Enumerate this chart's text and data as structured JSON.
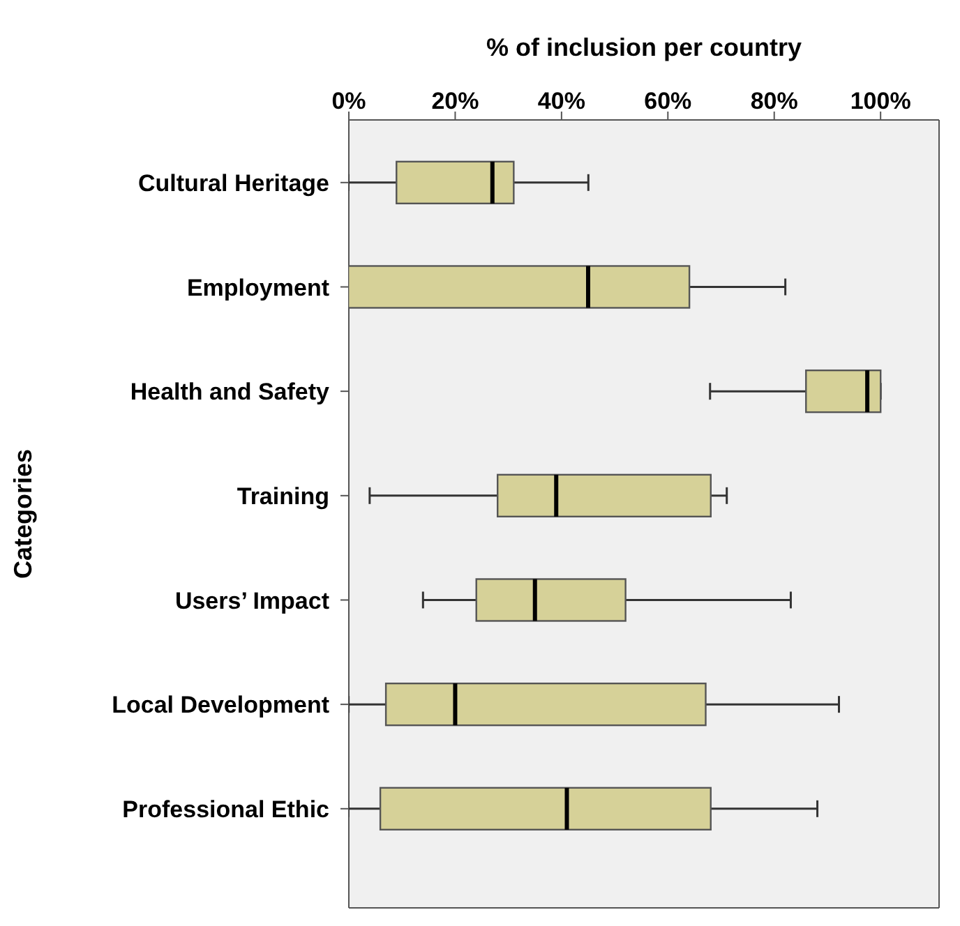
{
  "chart_data": {
    "type": "box",
    "xlabel": "% of inclusion per country",
    "ylabel": "Categories",
    "orientation": "horizontal",
    "categories": [
      "Cultural Heritage",
      "Employment",
      "Health and Safety",
      "Training",
      "Users’ Impact",
      "Local Development",
      "Professional Ethic"
    ],
    "color": "#d6d198",
    "xlim": [
      0,
      111
    ],
    "xticks": [
      {
        "value": 0,
        "label": "0%"
      },
      {
        "value": 20,
        "label": "20%"
      },
      {
        "value": 40,
        "label": "40%"
      },
      {
        "value": 60,
        "label": "60%"
      },
      {
        "value": 80,
        "label": "80%"
      },
      {
        "value": 100,
        "label": "100%"
      }
    ],
    "boxes": [
      {
        "low": 0,
        "q1": 9,
        "median": 27,
        "q3": 31,
        "high": 45
      },
      {
        "low": 0,
        "q1": 0,
        "median": 45,
        "q3": 64,
        "high": 82
      },
      {
        "low": 68,
        "q1": 86,
        "median": 97.5,
        "q3": 100,
        "high": 100
      },
      {
        "low": 4,
        "q1": 28,
        "median": 39,
        "q3": 68,
        "high": 71
      },
      {
        "low": 14,
        "q1": 24,
        "median": 35,
        "q3": 52,
        "high": 83
      },
      {
        "low": 0,
        "q1": 7,
        "median": 20,
        "q3": 67,
        "high": 92
      },
      {
        "low": 0,
        "q1": 6,
        "median": 41,
        "q3": 68,
        "high": 88
      }
    ]
  }
}
